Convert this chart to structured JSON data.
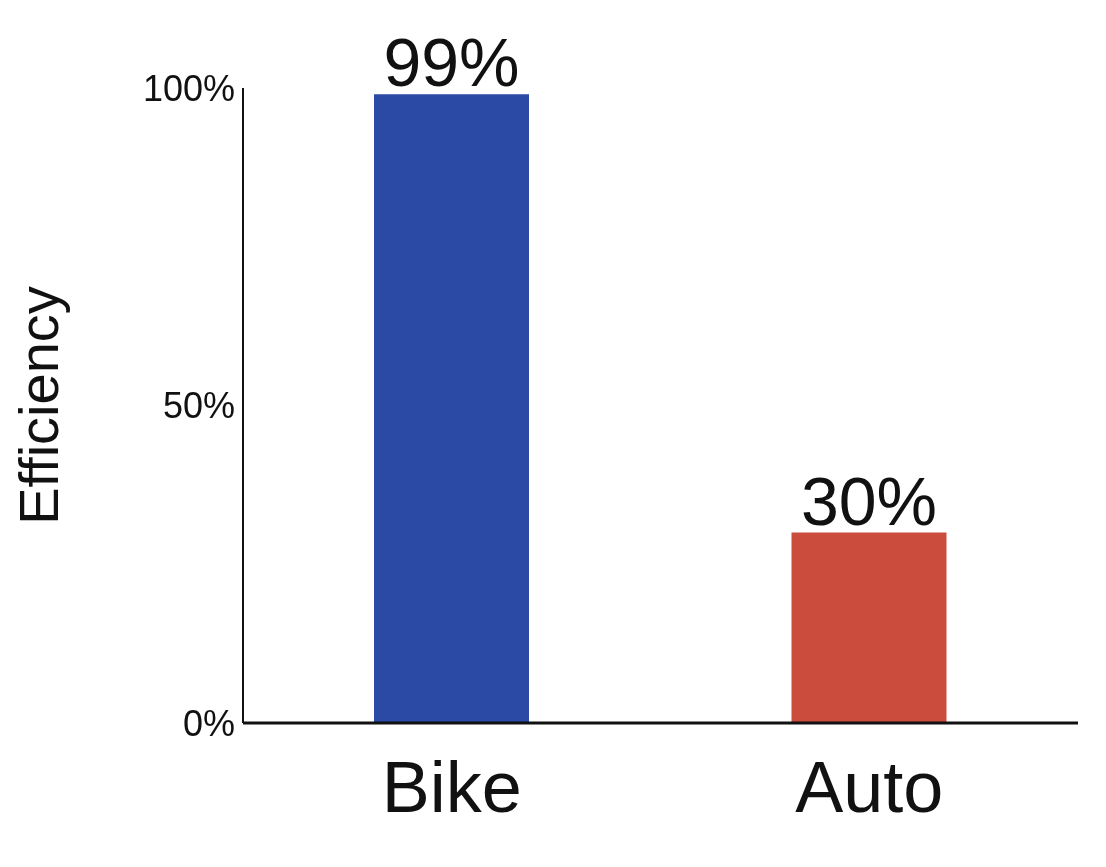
{
  "chart_data": {
    "type": "bar",
    "ylabel": "Efficiency",
    "categories": [
      "Bike",
      "Auto"
    ],
    "values": [
      99,
      30
    ],
    "colors": [
      "#2b4aa6",
      "#cb4b3c"
    ],
    "value_labels": [
      "99%",
      "30%"
    ],
    "ylim": [
      0,
      100
    ],
    "yticks": [
      {
        "value": 0,
        "label": "0%"
      },
      {
        "value": 50,
        "label": "50%"
      },
      {
        "value": 100,
        "label": "100%"
      }
    ],
    "grid": false,
    "legend": false
  }
}
